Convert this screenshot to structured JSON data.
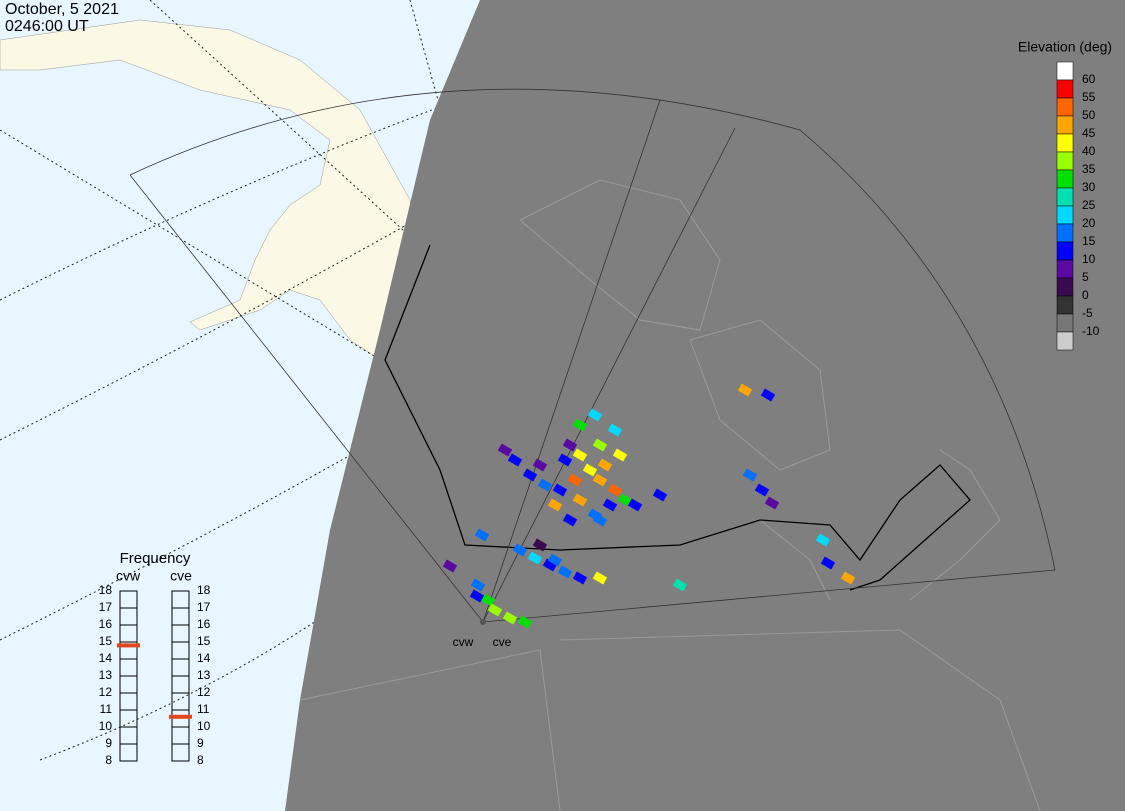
{
  "header": {
    "date": "October, 5 2021",
    "time": "0246:00 UT"
  },
  "elevation_scale": {
    "title": "Elevation (deg)",
    "labels": [
      60,
      55,
      50,
      45,
      40,
      35,
      30,
      25,
      20,
      15,
      10,
      5,
      0,
      -5,
      -10
    ],
    "colors": [
      "#ffffff",
      "#ff0000",
      "#ff6600",
      "#ffa500",
      "#ffff00",
      "#99ff00",
      "#00e000",
      "#00e0b0",
      "#00d8ff",
      "#0070ff",
      "#0000ff",
      "#5a0aa0",
      "#3a0a50",
      "#333333",
      "#777777",
      "#cccccc"
    ]
  },
  "frequency": {
    "title": "Frequency",
    "range": [
      8,
      18
    ],
    "ticks": [
      8,
      9,
      10,
      11,
      12,
      13,
      14,
      15,
      16,
      17,
      18
    ],
    "radars": [
      {
        "name": "cvw",
        "value": 14.8,
        "color": "#e0481c"
      },
      {
        "name": "cve",
        "value": 10.6,
        "color": "#e0481c"
      }
    ]
  },
  "map": {
    "radar_labels": [
      "cvw",
      "cve"
    ]
  }
}
